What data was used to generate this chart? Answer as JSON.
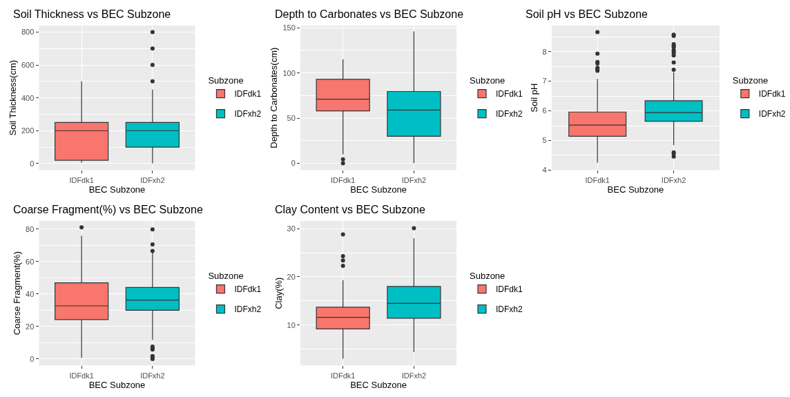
{
  "chart_data": [
    {
      "type": "box",
      "title": "Soil Thickness vs BEC Subzone",
      "xlabel": "BEC Subzone",
      "ylabel": "Soil Thickness(cm)",
      "legend_title": "Subzone",
      "categories": [
        "IDFdk1",
        "IDFxh2"
      ],
      "ylim": [
        -40,
        840
      ],
      "yticks": [
        0,
        200,
        400,
        600,
        800
      ],
      "grid": true,
      "legend": "right",
      "series": [
        {
          "name": "IDFdk1",
          "color": "#f8766d",
          "boxes": [
            {
              "low": 5,
              "q1": 20,
              "median": 200,
              "q3": 250,
              "high": 500
            },
            null
          ]
        },
        {
          "name": "IDFxh2",
          "color": "#00bfc4",
          "boxes": [
            null,
            {
              "low": 0,
              "q1": 100,
              "median": 200,
              "q3": 250,
              "high": 450,
              "outliers": [
                500,
                600,
                700,
                800
              ]
            }
          ]
        }
      ]
    },
    {
      "type": "box",
      "title": "Depth to Carbonates vs BEC Subzone",
      "xlabel": "BEC Subzone",
      "ylabel": "Depth to Carbonates(cm)",
      "legend_title": "Subzone",
      "categories": [
        "IDFdk1",
        "IDFxh2"
      ],
      "ylim": [
        -7.5,
        152.5
      ],
      "yticks": [
        0,
        50,
        100,
        150
      ],
      "grid": true,
      "legend": "right",
      "series": [
        {
          "name": "IDFdk1",
          "color": "#f8766d",
          "boxes": [
            {
              "low": 10,
              "q1": 58,
              "median": 71,
              "q3": 93,
              "high": 115,
              "outliers": [
                0,
                4.5
              ]
            },
            null
          ]
        },
        {
          "name": "IDFxh2",
          "color": "#00bfc4",
          "boxes": [
            null,
            {
              "low": 0,
              "q1": 30,
              "median": 59,
              "q3": 79.5,
              "high": 146
            }
          ]
        }
      ]
    },
    {
      "type": "box",
      "title": "Soil pH vs BEC Subzone",
      "xlabel": "BEC Subzone",
      "ylabel": "Soil pH",
      "legend_title": "Subzone",
      "categories": [
        "IDFdk1",
        "IDFxh2"
      ],
      "ylim": [
        4,
        8.88
      ],
      "yticks": [
        4,
        5,
        6,
        7,
        8
      ],
      "grid": true,
      "legend": "right",
      "series": [
        {
          "name": "IDFdk1",
          "color": "#f8766d",
          "boxes": [
            {
              "low": 4.25,
              "q1": 5.14,
              "median": 5.52,
              "q3": 5.96,
              "high": 7.08,
              "outliers": [
                7.35,
                7.4,
                7.45,
                7.6,
                7.65,
                7.93,
                8.66
              ]
            },
            null
          ]
        },
        {
          "name": "IDFxh2",
          "color": "#00bfc4",
          "boxes": [
            null,
            {
              "low": 4.84,
              "q1": 5.65,
              "median": 5.94,
              "q3": 6.34,
              "high": 7.3,
              "outliers": [
                4.46,
                4.55,
                4.6,
                7.39,
                7.63,
                7.87,
                7.95,
                8.0,
                8.05,
                8.15,
                8.2,
                8.25,
                8.53,
                8.57
              ]
            }
          ]
        }
      ]
    },
    {
      "type": "box",
      "title": "Coarse Fragment(%) vs BEC Subzone",
      "xlabel": "BEC Subzone",
      "ylabel": "Coarse Fragment(%)",
      "legend_title": "Subzone",
      "categories": [
        "IDFdk1",
        "IDFxh2"
      ],
      "ylim": [
        -4,
        85
      ],
      "yticks": [
        0,
        20,
        40,
        60,
        80
      ],
      "grid": true,
      "legend": "right",
      "series": [
        {
          "name": "IDFdk1",
          "color": "#f8766d",
          "boxes": [
            {
              "low": 0.7,
              "q1": 24.3,
              "median": 32.7,
              "q3": 46.9,
              "high": 75.8,
              "outliers": [
                81
              ]
            },
            null
          ]
        },
        {
          "name": "IDFxh2",
          "color": "#00bfc4",
          "boxes": [
            null,
            {
              "low": 11.8,
              "q1": 30,
              "median": 36.3,
              "q3": 44,
              "high": 65.4,
              "outliers": [
                0,
                1.0,
                1.4,
                1.8,
                5.8,
                6.7,
                7.6,
                66.5,
                70.5,
                79.8
              ]
            }
          ]
        }
      ]
    },
    {
      "type": "box",
      "title": "Clay Content vs BEC Subzone",
      "xlabel": "BEC Subzone",
      "ylabel": "Clay(%)",
      "legend_title": "Subzone",
      "categories": [
        "IDFdk1",
        "IDFxh2"
      ],
      "ylim": [
        1.6,
        31.6
      ],
      "yticks": [
        10,
        20,
        30
      ],
      "grid": true,
      "legend": "right",
      "series": [
        {
          "name": "IDFdk1",
          "color": "#f8766d",
          "boxes": [
            {
              "low": 3,
              "q1": 9.2,
              "median": 11.6,
              "q3": 13.7,
              "high": 19.3,
              "outliers": [
                22.3,
                23.4,
                24.3,
                28.8
              ]
            },
            null
          ]
        },
        {
          "name": "IDFxh2",
          "color": "#00bfc4",
          "boxes": [
            null,
            {
              "low": 4.4,
              "q1": 11.4,
              "median": 14.5,
              "q3": 18.0,
              "high": 28.0,
              "outliers": [
                30.1
              ]
            }
          ]
        }
      ]
    }
  ]
}
